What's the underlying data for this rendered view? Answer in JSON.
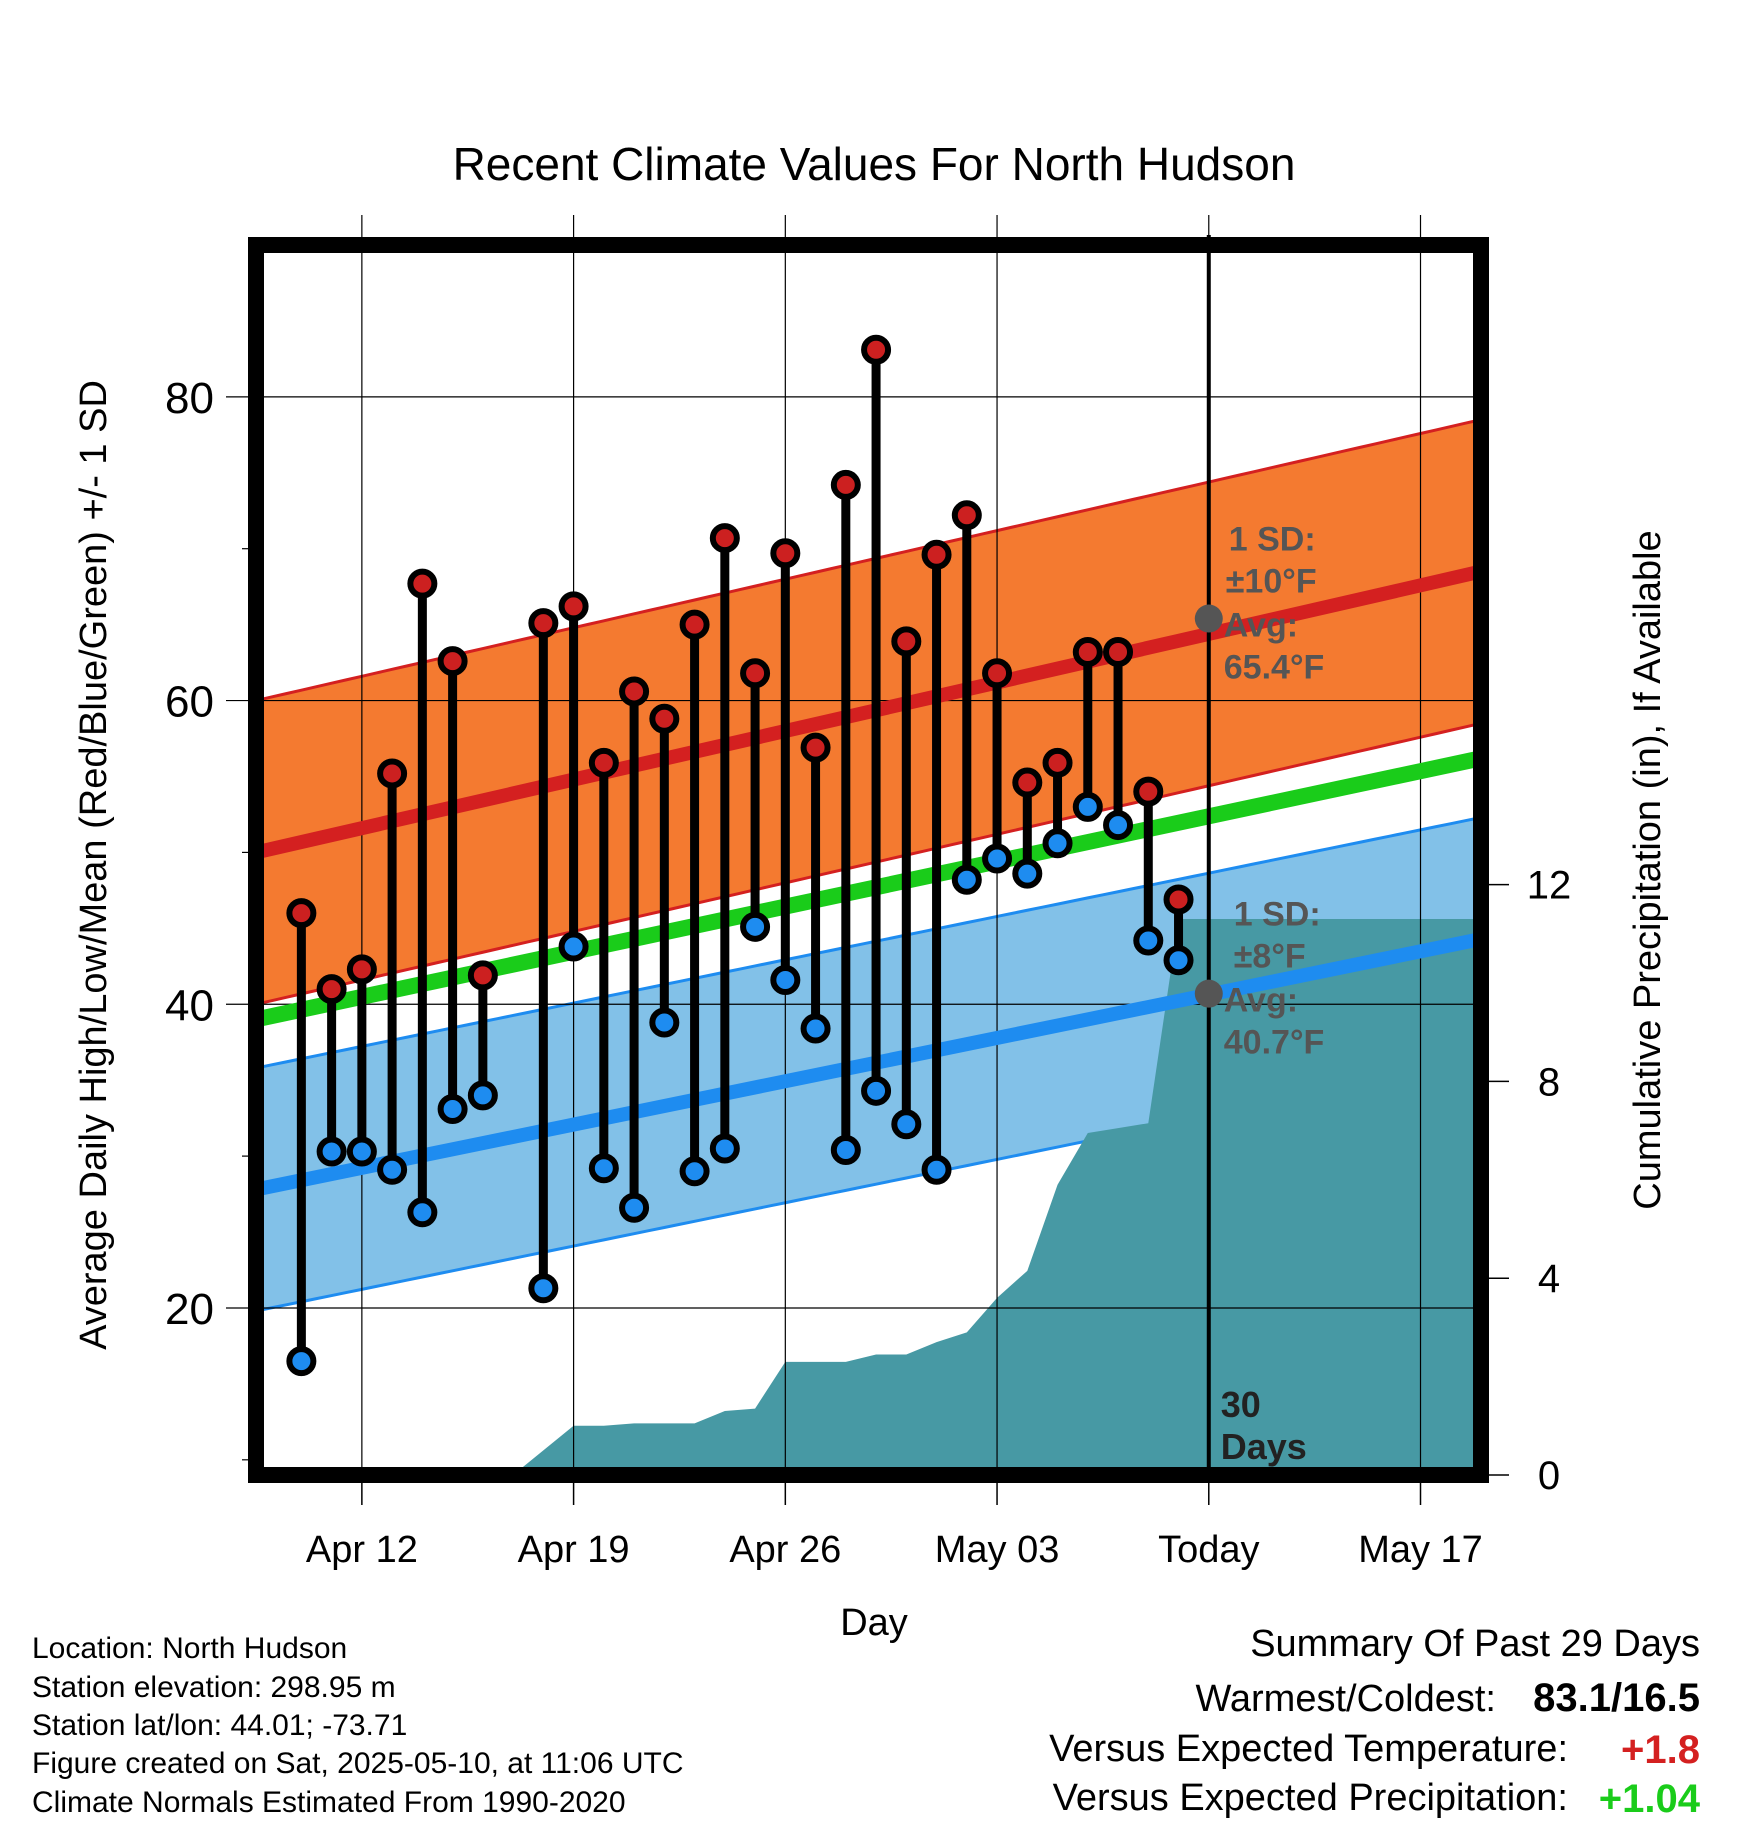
{
  "chart_data": {
    "type": "line",
    "title": "Recent Climate Values For North Hudson",
    "xlabel": "Day",
    "ylabel": "Average Daily High/Low/Mean (Red/Blue/Green) +/- 1 SD",
    "y2label": "Cumulative Precipitation (in), If Available",
    "x_tick_labels": [
      "Apr 12",
      "Apr 19",
      "Apr 26",
      "May 03",
      "Today",
      "May 17"
    ],
    "x_tick_days": [
      3,
      10,
      17,
      24,
      31,
      38
    ],
    "xlim": [
      -0.5,
      40
    ],
    "ylim": [
      9,
      90
    ],
    "y_ticks": [
      20,
      40,
      60,
      80
    ],
    "y2lim": [
      0,
      25
    ],
    "y2_ticks": [
      0,
      4,
      8,
      12
    ],
    "grid": true,
    "today_day": 31,
    "today_label": "30\nDays",
    "daily_high": [
      46,
      41,
      42.3,
      55.2,
      67.7,
      62.6,
      41.9,
      null,
      65.1,
      66.2,
      55.9,
      60.6,
      58.8,
      65,
      70.7,
      61.8,
      69.7,
      56.9,
      74.2,
      83.1,
      63.9,
      69.6,
      72.2,
      61.8,
      54.6,
      55.9,
      63.2,
      63.2,
      54,
      46.9
    ],
    "daily_low": [
      16.5,
      30.3,
      30.3,
      29.1,
      26.3,
      33.1,
      34,
      null,
      21.3,
      43.8,
      29.2,
      26.6,
      38.8,
      29,
      30.5,
      45.1,
      41.6,
      38.4,
      30.4,
      34.3,
      32.1,
      29.1,
      48.2,
      49.6,
      48.6,
      50.6,
      53,
      51.8,
      44.2,
      42.9
    ],
    "series": [
      {
        "name": "Average High",
        "color": "#d42020",
        "x": [
          -0.5,
          40
        ],
        "values": [
          50,
          68.5
        ]
      },
      {
        "name": "Average Low",
        "color": "#1e8cf0",
        "x": [
          -0.5,
          40
        ],
        "values": [
          27.8,
          44.3
        ]
      },
      {
        "name": "Average Mean",
        "color": "#1acc1a",
        "x": [
          -0.5,
          40
        ],
        "values": [
          39,
          56.2
        ]
      }
    ],
    "high_sd_deg": 10,
    "low_sd_deg": 8,
    "precip_cumulative": {
      "x": [
        -0.5,
        8,
        9,
        10,
        11,
        12,
        13,
        14,
        15,
        16,
        17,
        18,
        19,
        20,
        21,
        22,
        23,
        24,
        25,
        26,
        27,
        28,
        29,
        30,
        31,
        40
      ],
      "values": [
        0,
        0,
        0.5,
        1,
        1,
        1.05,
        1.05,
        1.05,
        1.3,
        1.35,
        2.3,
        2.3,
        2.3,
        2.45,
        2.45,
        2.7,
        2.9,
        3.6,
        4.15,
        5.9,
        6.95,
        7.05,
        7.15,
        11.3,
        11.3,
        11.3
      ]
    },
    "annotations": {
      "high_sd_label": "1 SD:",
      "high_sd_value": "±10°F",
      "high_avg_label": "Avg:",
      "high_avg_value": "65.4°F",
      "high_avg_number": 65.4,
      "low_sd_label": "1 SD:",
      "low_sd_value": "±8°F",
      "low_avg_label": "Avg:",
      "low_avg_value": "40.7°F",
      "low_avg_number": 40.7
    },
    "colors": {
      "high_band": "#f47a30",
      "low_band": "#82c1e8",
      "precip": "#4799a4",
      "high_dot": "#cc2020",
      "low_dot": "#1e8cf0",
      "avg_marker": "#555555",
      "positive_temp": "#d42020",
      "positive_precip": "#1acc1a"
    }
  },
  "info": {
    "location": "Location: North Hudson",
    "elevation": "Station elevation: 298.95 m",
    "latlon": "Station lat/lon: 44.01; -73.71",
    "created": "Figure created on Sat, 2025-05-10, at 11:06 UTC",
    "normals": "Climate Normals Estimated From 1990-2020"
  },
  "summary": {
    "heading": "Summary Of Past 29 Days",
    "warm_cold_label": "Warmest/Coldest:",
    "warm_cold_value": "83.1/16.5",
    "temp_label": "Versus Expected Temperature:",
    "temp_value": "+1.8",
    "precip_label": "Versus Expected Precipitation:",
    "precip_value": "+1.04"
  }
}
